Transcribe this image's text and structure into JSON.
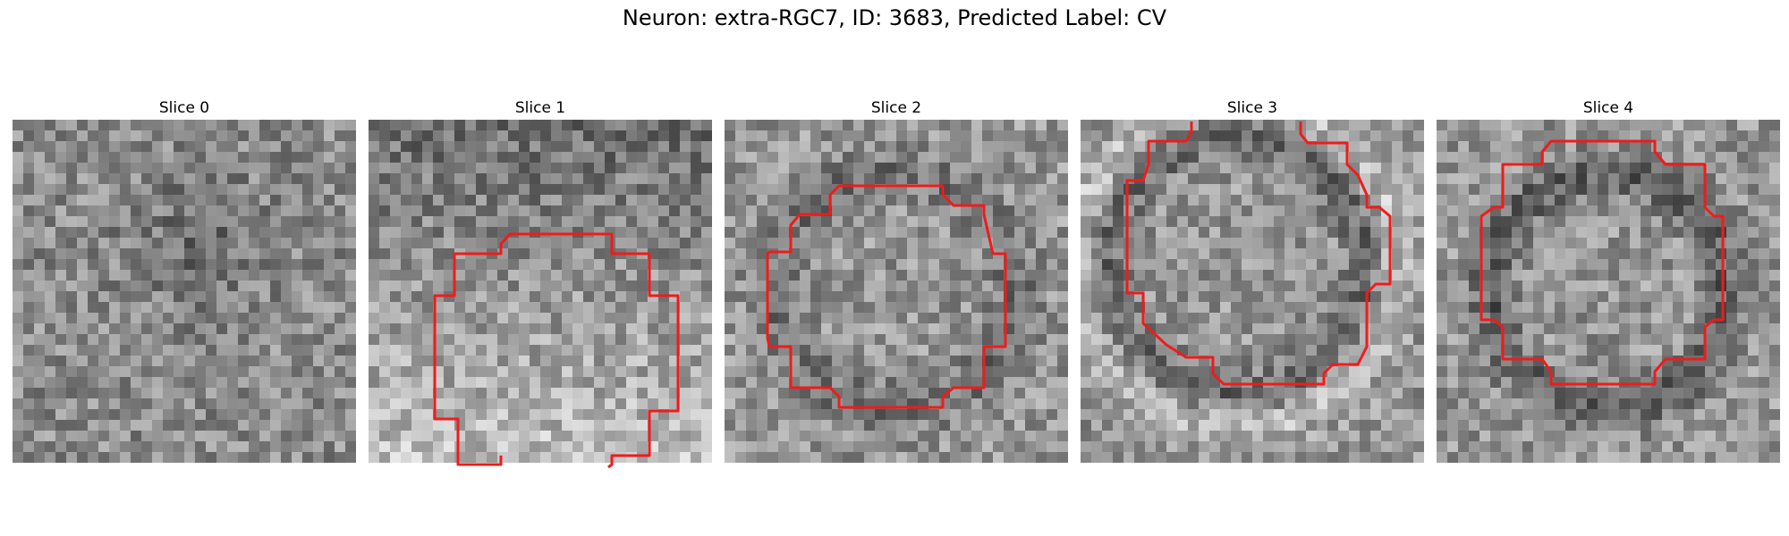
{
  "figure": {
    "title": "Neuron: extra-RGC7, ID: 3683, Predicted Label: CV"
  },
  "colors": {
    "contour": "#ee1c1c",
    "background": "#ffffff"
  },
  "panels": [
    {
      "title": "Slice 0",
      "has_contour": false
    },
    {
      "title": "Slice 1",
      "has_contour": true
    },
    {
      "title": "Slice 2",
      "has_contour": true
    },
    {
      "title": "Slice 3",
      "has_contour": true
    },
    {
      "title": "Slice 4",
      "has_contour": true
    }
  ]
}
